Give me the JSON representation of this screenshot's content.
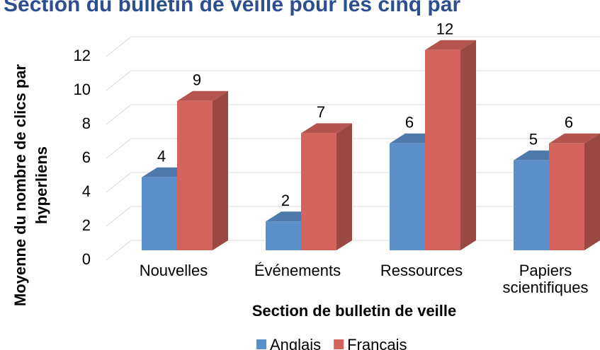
{
  "chart_data": {
    "type": "bar3d",
    "title": "Section du bulletin de veille pour les cinq par",
    "x_label": "Section de bulletin de veille",
    "y_label": "Moyenne du nombre de clics par hyperliens",
    "categories": [
      "Nouvelles",
      "Événements",
      "Ressources",
      "Papiers scientifiques"
    ],
    "series": [
      {
        "name": "Anglais",
        "color": "#5b8fc9",
        "values": [
          4.3,
          1.7,
          6.3,
          5.3
        ],
        "value_labels": [
          "4",
          "2",
          "6",
          "5"
        ]
      },
      {
        "name": "Français",
        "color": "#d4645b",
        "values": [
          8.8,
          6.9,
          11.8,
          6.3
        ],
        "value_labels": [
          "9",
          "7",
          "12",
          "6"
        ]
      }
    ],
    "ylim": [
      0,
      12
    ],
    "yticks": [
      0,
      2,
      4,
      6,
      8,
      10,
      12
    ],
    "grid": true,
    "legend": "bottom"
  }
}
